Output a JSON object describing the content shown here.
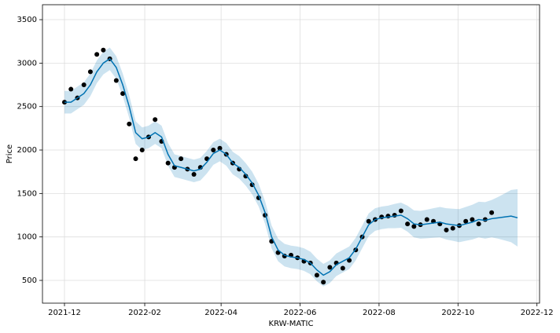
{
  "chart_data": {
    "type": "forecast",
    "xlabel": "KRW-MATIC",
    "ylabel": "Price",
    "x": [
      0,
      5,
      10,
      15,
      20,
      25,
      30,
      35,
      40,
      45,
      50,
      55,
      60,
      65,
      70,
      75,
      80,
      85,
      90,
      95,
      100,
      105,
      110,
      115,
      120,
      125,
      130,
      135,
      140,
      145,
      150,
      155,
      160,
      165,
      170,
      175,
      180,
      185,
      190,
      195,
      200,
      205,
      210,
      215,
      220,
      225,
      230,
      235,
      240,
      245,
      250,
      255,
      260,
      265,
      270,
      275,
      280,
      285,
      290,
      295,
      300,
      305,
      310,
      315,
      320,
      325,
      330,
      335,
      340,
      345,
      350
    ],
    "actual": [
      2550,
      2700,
      2600,
      2750,
      2900,
      3100,
      3150,
      3050,
      2800,
      2650,
      2300,
      1900,
      2000,
      2150,
      2350,
      2100,
      1850,
      1800,
      1900,
      1780,
      1720,
      1800,
      1900,
      2000,
      2020,
      1950,
      1850,
      1780,
      1700,
      1600,
      1450,
      1250,
      950,
      820,
      780,
      790,
      760,
      720,
      700,
      560,
      480,
      650,
      700,
      640,
      730,
      850,
      1000,
      1180,
      1200,
      1230,
      1240,
      1250,
      1300,
      1150,
      1120,
      1140,
      1200,
      1180,
      1150,
      1080,
      1100,
      1130,
      1180,
      1200,
      1150,
      1200,
      1280,
      null,
      null,
      null,
      null
    ],
    "yhat": [
      2550,
      2550,
      2600,
      2650,
      2750,
      2900,
      3000,
      3050,
      2950,
      2750,
      2500,
      2200,
      2130,
      2150,
      2200,
      2150,
      1950,
      1820,
      1800,
      1780,
      1760,
      1780,
      1860,
      1960,
      2000,
      1950,
      1850,
      1800,
      1720,
      1620,
      1480,
      1280,
      1000,
      850,
      790,
      770,
      760,
      740,
      700,
      620,
      560,
      600,
      680,
      720,
      760,
      860,
      1000,
      1140,
      1200,
      1220,
      1230,
      1240,
      1250,
      1210,
      1150,
      1140,
      1150,
      1160,
      1170,
      1150,
      1140,
      1130,
      1150,
      1170,
      1200,
      1190,
      1210,
      1220,
      1230,
      1240,
      1220
    ],
    "yhat_lower": [
      2420,
      2420,
      2470,
      2520,
      2620,
      2770,
      2870,
      2920,
      2820,
      2620,
      2370,
      2070,
      2000,
      2020,
      2070,
      2020,
      1820,
      1690,
      1670,
      1650,
      1630,
      1650,
      1730,
      1830,
      1870,
      1820,
      1720,
      1670,
      1590,
      1490,
      1350,
      1150,
      870,
      720,
      660,
      640,
      630,
      610,
      570,
      490,
      430,
      470,
      550,
      590,
      630,
      730,
      870,
      1010,
      1070,
      1090,
      1100,
      1100,
      1105,
      1060,
      995,
      980,
      985,
      990,
      995,
      970,
      955,
      940,
      955,
      970,
      995,
      980,
      995,
      980,
      960,
      940,
      890
    ],
    "yhat_upper": [
      2680,
      2680,
      2730,
      2780,
      2880,
      3030,
      3130,
      3180,
      3080,
      2880,
      2630,
      2330,
      2260,
      2280,
      2330,
      2280,
      2080,
      1950,
      1930,
      1910,
      1890,
      1910,
      1990,
      2090,
      2130,
      2080,
      1980,
      1930,
      1850,
      1750,
      1610,
      1410,
      1130,
      980,
      920,
      900,
      890,
      870,
      830,
      750,
      690,
      730,
      810,
      850,
      890,
      990,
      1130,
      1270,
      1330,
      1350,
      1360,
      1380,
      1395,
      1360,
      1305,
      1300,
      1315,
      1330,
      1345,
      1330,
      1325,
      1320,
      1345,
      1370,
      1405,
      1400,
      1425,
      1460,
      1500,
      1540,
      1550
    ],
    "actual_color": "#000000",
    "forecast_color": "#0072B2",
    "xlim": [
      -17,
      367
    ],
    "ylim": [
      238,
      3672
    ],
    "xticks": [
      {
        "value": 0,
        "label": "2021-12"
      },
      {
        "value": 62,
        "label": "2022-02"
      },
      {
        "value": 121,
        "label": "2022-04"
      },
      {
        "value": 182,
        "label": "2022-06"
      },
      {
        "value": 243,
        "label": "2022-08"
      },
      {
        "value": 304,
        "label": "2022-10"
      },
      {
        "value": 365,
        "label": "2022-12"
      }
    ],
    "yticks": [
      500,
      1000,
      1500,
      2000,
      2500,
      3000,
      3500
    ],
    "grid": true
  }
}
